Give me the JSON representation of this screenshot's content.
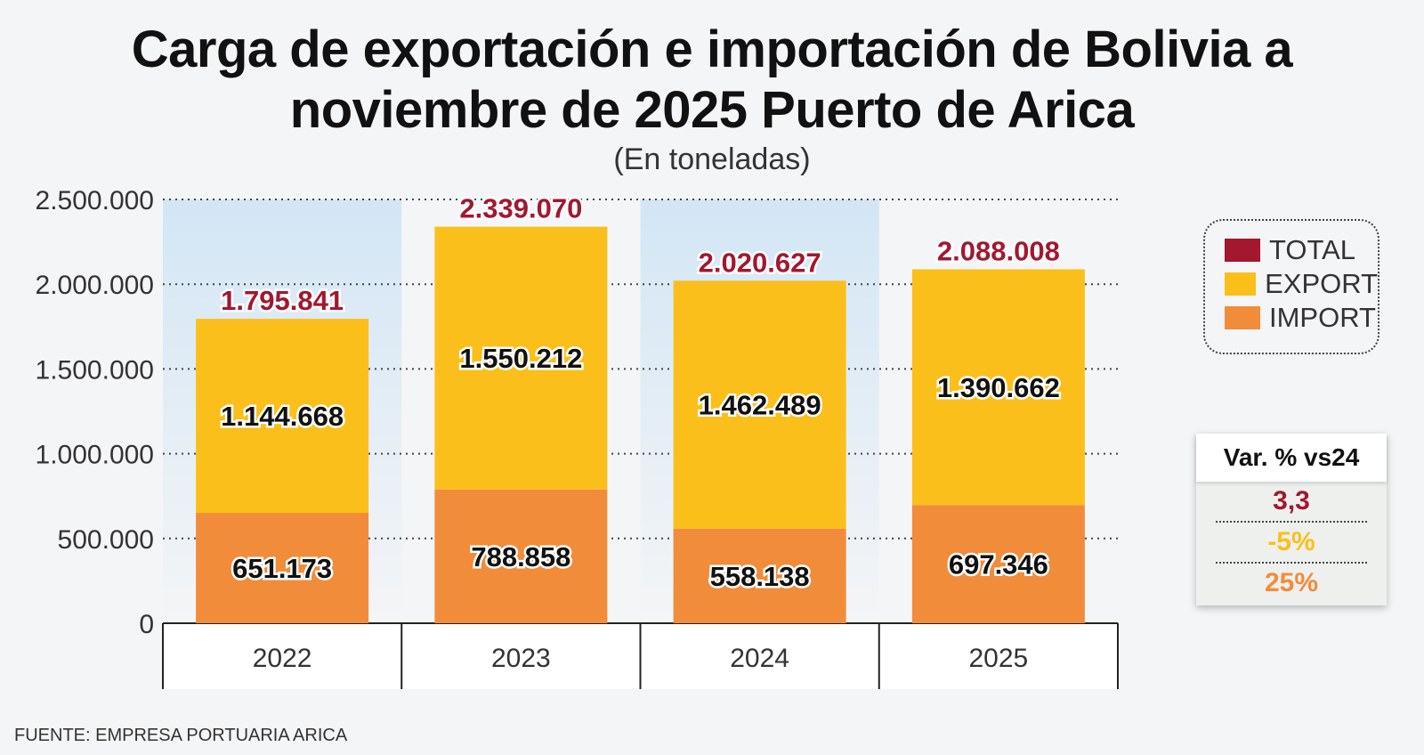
{
  "title_line1": "Carga de exportación e importación de Bolivia a",
  "title_line2": "noviembre de 2025 Puerto de Arica",
  "subtitle": "(En toneladas)",
  "source": "FUENTE: EMPRESA PORTUARIA ARICA",
  "legend": [
    {
      "label": "TOTAL",
      "color": "#a3172f"
    },
    {
      "label": "EXPORT",
      "color": "#fbbf1c"
    },
    {
      "label": "IMPORT",
      "color": "#f18c3b"
    }
  ],
  "variation": {
    "header": "Var. % vs24",
    "rows": [
      {
        "label": "TOTAL",
        "value": "3,3",
        "color": "#a3172f"
      },
      {
        "label": "EXPORT",
        "value": "-5%",
        "color": "#fbbf1c"
      },
      {
        "label": "IMPORT",
        "value": "25%",
        "color": "#f18c3b"
      }
    ]
  },
  "chart_data": {
    "type": "bar",
    "stacked": true,
    "categories": [
      "2022",
      "2023",
      "2024",
      "2025"
    ],
    "series": [
      {
        "name": "IMPORT",
        "values": [
          651173,
          788858,
          558138,
          697346
        ],
        "labels": [
          "651.173",
          "788.858",
          "558.138",
          "697.346"
        ],
        "color": "#f18c3b"
      },
      {
        "name": "EXPORT",
        "values": [
          1144668,
          1550212,
          1462489,
          1390662
        ],
        "labels": [
          "1.144.668",
          "1.550.212",
          "1.462.489",
          "1.390.662"
        ],
        "color": "#fbbf1c"
      }
    ],
    "totals": [
      1795841,
      2339070,
      2020627,
      2088008
    ],
    "total_labels": [
      "1.795.841",
      "2.339.070",
      "2.020.627",
      "2.088.008"
    ],
    "total_color": "#a3172f",
    "yticks": [
      0,
      500000,
      1000000,
      1500000,
      2000000,
      2500000
    ],
    "ytick_labels": [
      "0",
      "500.000",
      "1.000.000",
      "1.500.000",
      "2.000.000",
      "2.500.000"
    ],
    "ylim": [
      0,
      2500000
    ],
    "grid": true,
    "legend_position": "right"
  }
}
